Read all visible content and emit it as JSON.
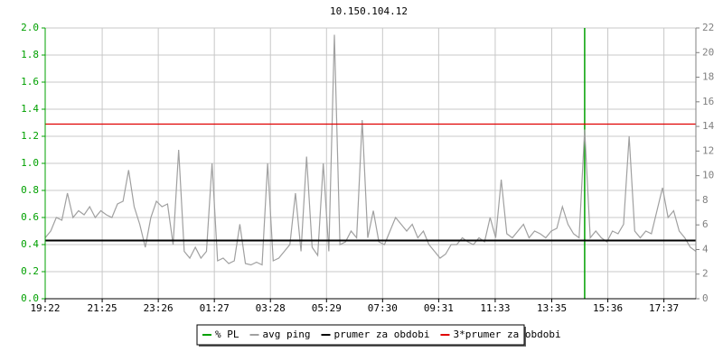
{
  "chart_data": {
    "type": "line",
    "title": "10.150.104.12",
    "x": [
      0,
      0.2,
      0.4,
      0.6,
      0.8,
      1,
      1.2,
      1.4,
      1.6,
      1.8,
      2,
      2.2,
      2.4,
      2.6,
      2.8,
      3,
      3.2,
      3.4,
      3.6,
      3.8,
      4,
      4.2,
      4.4,
      4.6,
      4.8,
      5,
      5.2,
      5.4,
      5.6,
      5.8,
      6,
      6.2,
      6.4,
      6.6,
      6.8,
      7,
      7.2,
      7.4,
      7.6,
      7.8,
      8,
      8.2,
      8.4,
      8.6,
      8.8,
      9,
      9.2,
      9.4,
      9.6,
      9.8,
      10,
      10.2,
      10.4,
      10.6,
      10.8,
      11,
      11.2,
      11.4,
      11.6,
      11.8,
      12,
      12.2,
      12.4,
      12.6,
      12.8,
      13,
      13.2,
      13.4,
      13.6,
      13.8,
      14,
      14.2,
      14.4,
      14.6,
      14.8,
      15,
      15.2,
      15.4,
      15.6,
      15.8,
      16,
      16.2,
      16.4,
      16.6,
      16.8,
      17,
      17.2,
      17.4,
      17.6,
      17.8,
      18,
      18.2,
      18.4,
      18.6,
      18.8,
      19,
      19.2,
      19.4,
      19.6,
      19.8,
      20,
      20.2,
      20.4,
      20.6,
      20.8,
      21,
      21.2,
      21.4,
      21.6,
      21.8,
      22,
      22.2,
      22.4,
      22.6,
      22.8,
      23,
      23.2,
      23.4
    ],
    "series": [
      {
        "name": "% PL",
        "color": "#00a000",
        "axis": "y2",
        "values": [
          0,
          0,
          0,
          0,
          0,
          0,
          0,
          0,
          0,
          0,
          0,
          0,
          0,
          0,
          0,
          0,
          0,
          0,
          0,
          0,
          0,
          0,
          0,
          0,
          0,
          0,
          0,
          0,
          0,
          0,
          0,
          0,
          0,
          0,
          0,
          0,
          0,
          0,
          0,
          0,
          0,
          0,
          0,
          0,
          0,
          0,
          0,
          0,
          0,
          0,
          0,
          0,
          0,
          0,
          0,
          0,
          0,
          0,
          0,
          0,
          0,
          0,
          0,
          0,
          0,
          0,
          0,
          0,
          0,
          0,
          0,
          0,
          0,
          0,
          0,
          0,
          0,
          0,
          0,
          0,
          0,
          0,
          0,
          0,
          0,
          0,
          0,
          0,
          0,
          0,
          0,
          0,
          0,
          0,
          0,
          0,
          0,
          22,
          0,
          0,
          0,
          0,
          0,
          0,
          0,
          0,
          0,
          0,
          0,
          0,
          0,
          0,
          0,
          0,
          0,
          0,
          0,
          0
        ]
      },
      {
        "name": "avg ping",
        "color": "#a0a0a0",
        "values": [
          0.45,
          0.5,
          0.6,
          0.58,
          0.78,
          0.6,
          0.65,
          0.62,
          0.68,
          0.6,
          0.65,
          0.62,
          0.6,
          0.7,
          0.72,
          0.95,
          0.68,
          0.55,
          0.38,
          0.6,
          0.72,
          0.68,
          0.7,
          0.4,
          1.1,
          0.35,
          0.3,
          0.38,
          0.3,
          0.35,
          1.0,
          0.28,
          0.3,
          0.26,
          0.28,
          0.55,
          0.26,
          0.25,
          0.27,
          0.25,
          1.0,
          0.28,
          0.3,
          0.35,
          0.4,
          0.78,
          0.35,
          1.05,
          0.38,
          0.32,
          1.0,
          0.35,
          1.95,
          0.4,
          0.42,
          0.5,
          0.45,
          1.32,
          0.45,
          0.65,
          0.42,
          0.4,
          0.5,
          0.6,
          0.55,
          0.5,
          0.55,
          0.45,
          0.5,
          0.4,
          0.35,
          0.3,
          0.33,
          0.4,
          0.4,
          0.45,
          0.42,
          0.4,
          0.45,
          0.42,
          0.6,
          0.45,
          0.88,
          0.48,
          0.45,
          0.5,
          0.55,
          0.45,
          0.5,
          0.48,
          0.45,
          0.5,
          0.52,
          0.68,
          0.55,
          0.48,
          0.45,
          1.25,
          0.45,
          0.5,
          0.45,
          0.42,
          0.5,
          0.48,
          0.55,
          1.2,
          0.5,
          0.45,
          0.5,
          0.48,
          0.65,
          0.82,
          0.6,
          0.65,
          0.5,
          0.45,
          0.38,
          0.35
        ]
      },
      {
        "name": "prumer za obdobi",
        "color": "#000000",
        "value": 0.43
      },
      {
        "name": "3*prumer za obdobi",
        "color": "#e00000",
        "value": 1.29
      }
    ],
    "xlim": [
      0,
      23.4
    ],
    "xticks": [
      {
        "value": 0,
        "label": "19:22"
      },
      {
        "value": 2.05,
        "label": "21:25"
      },
      {
        "value": 4.067,
        "label": "23:26"
      },
      {
        "value": 6.083,
        "label": "01:27"
      },
      {
        "value": 8.1,
        "label": "03:28"
      },
      {
        "value": 10.117,
        "label": "05:29"
      },
      {
        "value": 12.133,
        "label": "07:30"
      },
      {
        "value": 14.15,
        "label": "09:31"
      },
      {
        "value": 16.183,
        "label": "11:33"
      },
      {
        "value": 18.217,
        "label": "13:35"
      },
      {
        "value": 20.233,
        "label": "15:36"
      },
      {
        "value": 22.25,
        "label": "17:37"
      }
    ],
    "ylim": [
      0,
      2
    ],
    "yticks": [
      {
        "value": 0,
        "label": "0.0"
      },
      0.2,
      0.4,
      0.6,
      0.8,
      {
        "value": 1,
        "label": "1.0"
      },
      1.2,
      1.4,
      1.6,
      1.8,
      {
        "value": 2,
        "label": "2.0"
      }
    ],
    "y2lim": [
      0,
      22
    ],
    "y2ticks": [
      0,
      2,
      4,
      6,
      8,
      10,
      12,
      14,
      16,
      18,
      20,
      22
    ],
    "grid": true
  }
}
